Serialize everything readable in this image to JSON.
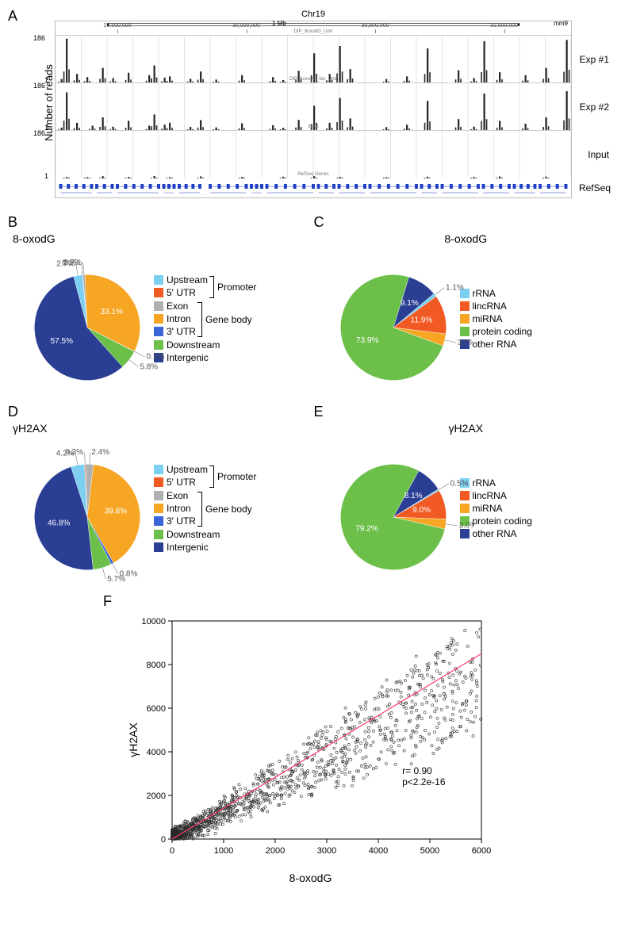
{
  "panelA": {
    "label": "A",
    "ylabel": "Number of reads",
    "chrom": "Chr19",
    "ruler_ticks": [
      "29,500,000",
      "30,000,000",
      "30,500,000",
      "31,000,000"
    ],
    "scale_label": "1 Mb",
    "genome": "mm9",
    "ymax": 186,
    "ymin": 1,
    "tracks": [
      {
        "label": "Exp #1",
        "sublabel": "DIP_8oxodG_Untr",
        "peaks": [
          1,
          2,
          4,
          6,
          9,
          11,
          14,
          18,
          19,
          21,
          22,
          26,
          28,
          31,
          36,
          42,
          44,
          47,
          50,
          53,
          55,
          57,
          64,
          68,
          72,
          78,
          81,
          83,
          86,
          91,
          95,
          99
        ],
        "heights": [
          14,
          180,
          35,
          22,
          60,
          18,
          40,
          30,
          70,
          20,
          25,
          15,
          45,
          12,
          30,
          22,
          10,
          48,
          120,
          35,
          150,
          55,
          14,
          25,
          140,
          50,
          18,
          170,
          42,
          30,
          60,
          175
        ]
      },
      {
        "label": "Exp #2",
        "sublabel": "DIP_8oxodG_bio_Untr",
        "peaks": [
          1,
          2,
          4,
          7,
          9,
          11,
          14,
          18,
          19,
          21,
          22,
          26,
          28,
          31,
          36,
          42,
          44,
          47,
          50,
          53,
          55,
          57,
          64,
          68,
          72,
          78,
          81,
          83,
          86,
          91,
          95,
          99
        ],
        "heights": [
          10,
          155,
          30,
          18,
          52,
          14,
          38,
          18,
          64,
          22,
          30,
          13,
          41,
          11,
          28,
          20,
          9,
          42,
          100,
          30,
          132,
          48,
          12,
          22,
          120,
          45,
          14,
          150,
          38,
          26,
          52,
          160
        ]
      },
      {
        "label": "Input",
        "sublabel": "Input",
        "peaks": [
          2,
          6,
          9,
          14,
          19,
          22,
          28,
          36,
          44,
          50,
          55,
          64,
          72,
          81,
          86,
          95
        ],
        "heights": [
          6,
          5,
          9,
          6,
          10,
          5,
          8,
          6,
          7,
          9,
          6,
          5,
          7,
          6,
          8,
          7
        ]
      }
    ],
    "refseq": {
      "label": "RefSeq",
      "sublabel": "RefSeq Genes",
      "color": "#1e3fc1",
      "genes": [
        {
          "x": 1,
          "w": 6
        },
        {
          "x": 8,
          "w": 3
        },
        {
          "x": 12,
          "w": 8
        },
        {
          "x": 21,
          "w": 2
        },
        {
          "x": 24,
          "w": 4
        },
        {
          "x": 30,
          "w": 7
        },
        {
          "x": 38,
          "w": 2
        },
        {
          "x": 41,
          "w": 9
        },
        {
          "x": 51,
          "w": 3
        },
        {
          "x": 55,
          "w": 5
        },
        {
          "x": 61,
          "w": 9
        },
        {
          "x": 71,
          "w": 3
        },
        {
          "x": 75,
          "w": 7
        },
        {
          "x": 83,
          "w": 5
        },
        {
          "x": 89,
          "w": 4
        },
        {
          "x": 94,
          "w": 5
        }
      ]
    },
    "peak_color": "#2a2a2a",
    "grid_color": "#e5e5e5"
  },
  "region_legend": [
    {
      "label": "Upstream",
      "color": "#7dcff2",
      "group": "Promoter"
    },
    {
      "label": "5' UTR",
      "color": "#f15a22",
      "group": "Promoter"
    },
    {
      "label": "Exon",
      "color": "#b0b0b0",
      "group": "Gene body"
    },
    {
      "label": "Intron",
      "color": "#f6a623",
      "group": "Gene body"
    },
    {
      "label": "3' UTR",
      "color": "#3a64d8",
      "group": "Gene body"
    },
    {
      "label": "Downstream",
      "color": "#6cc04a",
      "group": null
    },
    {
      "label": "Intergenic",
      "color": "#2a3e93",
      "group": null
    }
  ],
  "rna_legend": [
    {
      "label": "rRNA",
      "color": "#7dcff2"
    },
    {
      "label": "lincRNA",
      "color": "#f15a22"
    },
    {
      "label": "miRNA",
      "color": "#f6a623"
    },
    {
      "label": "protein coding",
      "color": "#6cc04a"
    },
    {
      "label": "other RNA",
      "color": "#2a3e93"
    }
  ],
  "panelB": {
    "label": "B",
    "title": "8-oxodG",
    "slices": [
      {
        "name": "Upstream",
        "value": 2.7,
        "color": "#7dcff2",
        "show": "out"
      },
      {
        "name": "5' UTR",
        "value": 0.1,
        "color": "#f15a22",
        "show": "out"
      },
      {
        "name": "Exon",
        "value": 0.7,
        "color": "#b0b0b0",
        "show": "out"
      },
      {
        "name": "Intron",
        "value": 33.1,
        "color": "#f6a623",
        "show": "in"
      },
      {
        "name": "3' UTR",
        "value": 0.1,
        "color": "#3a64d8",
        "show": "out"
      },
      {
        "name": "Downstream",
        "value": 5.8,
        "color": "#6cc04a",
        "show": "out"
      },
      {
        "name": "Intergenic",
        "value": 57.5,
        "color": "#2a3e93",
        "show": "in"
      }
    ],
    "start_angle": -105
  },
  "panelC": {
    "label": "C",
    "title": "8-oxodG",
    "slices": [
      {
        "name": "rRNA",
        "value": 1.1,
        "color": "#7dcff2",
        "show": "out"
      },
      {
        "name": "lincRNA",
        "value": 11.9,
        "color": "#f15a22",
        "show": "in"
      },
      {
        "name": "miRNA",
        "value": 3.7,
        "color": "#f6a623",
        "show": "out"
      },
      {
        "name": "protein coding",
        "value": 73.9,
        "color": "#6cc04a",
        "show": "in"
      },
      {
        "name": "other RNA",
        "value": 9.1,
        "color": "#2a3e93",
        "show": "in"
      }
    ],
    "start_angle": -40
  },
  "panelD": {
    "label": "D",
    "title": "γH2AX",
    "slices": [
      {
        "name": "Upstream",
        "value": 4.2,
        "color": "#7dcff2",
        "show": "out"
      },
      {
        "name": "5' UTR",
        "value": 0.3,
        "color": "#f15a22",
        "show": "out"
      },
      {
        "name": "Exon",
        "value": 2.4,
        "color": "#b0b0b0",
        "show": "out"
      },
      {
        "name": "Intron",
        "value": 39.8,
        "color": "#f6a623",
        "show": "in"
      },
      {
        "name": "3' UTR",
        "value": 0.8,
        "color": "#3a64d8",
        "show": "out"
      },
      {
        "name": "Downstream",
        "value": 5.7,
        "color": "#6cc04a",
        "show": "out"
      },
      {
        "name": "Intergenic",
        "value": 46.8,
        "color": "#2a3e93",
        "show": "in"
      }
    ],
    "start_angle": -108
  },
  "panelE": {
    "label": "E",
    "title": "γH2AX",
    "slices": [
      {
        "name": "rRNA",
        "value": 0.5,
        "color": "#7dcff2",
        "show": "out"
      },
      {
        "name": "lincRNA",
        "value": 9.0,
        "color": "#f15a22",
        "show": "in"
      },
      {
        "name": "miRNA",
        "value": 3.0,
        "color": "#f6a623",
        "show": "out"
      },
      {
        "name": "protein coding",
        "value": 79.2,
        "color": "#6cc04a",
        "show": "in"
      },
      {
        "name": "other RNA",
        "value": 8.1,
        "color": "#2a3e93",
        "show": "in"
      }
    ],
    "start_angle": -32
  },
  "panelF": {
    "label": "F",
    "xlabel": "8-oxodG",
    "ylabel": "γH2AX",
    "xlim": [
      0,
      6000
    ],
    "ylim": [
      0,
      10000
    ],
    "xticks": [
      0,
      1000,
      2000,
      3000,
      4000,
      5000,
      6000
    ],
    "yticks": [
      0,
      2000,
      4000,
      6000,
      8000,
      10000
    ],
    "r_text": "r= 0.90",
    "p_text": "p<2.2e-16",
    "fit_line": {
      "x1": 0,
      "y1": 0,
      "x2": 6800,
      "y2": 8500,
      "color": "#ff3b6b"
    },
    "point_color": "#2a2a2a",
    "n_points": 1400,
    "seed": 42
  }
}
